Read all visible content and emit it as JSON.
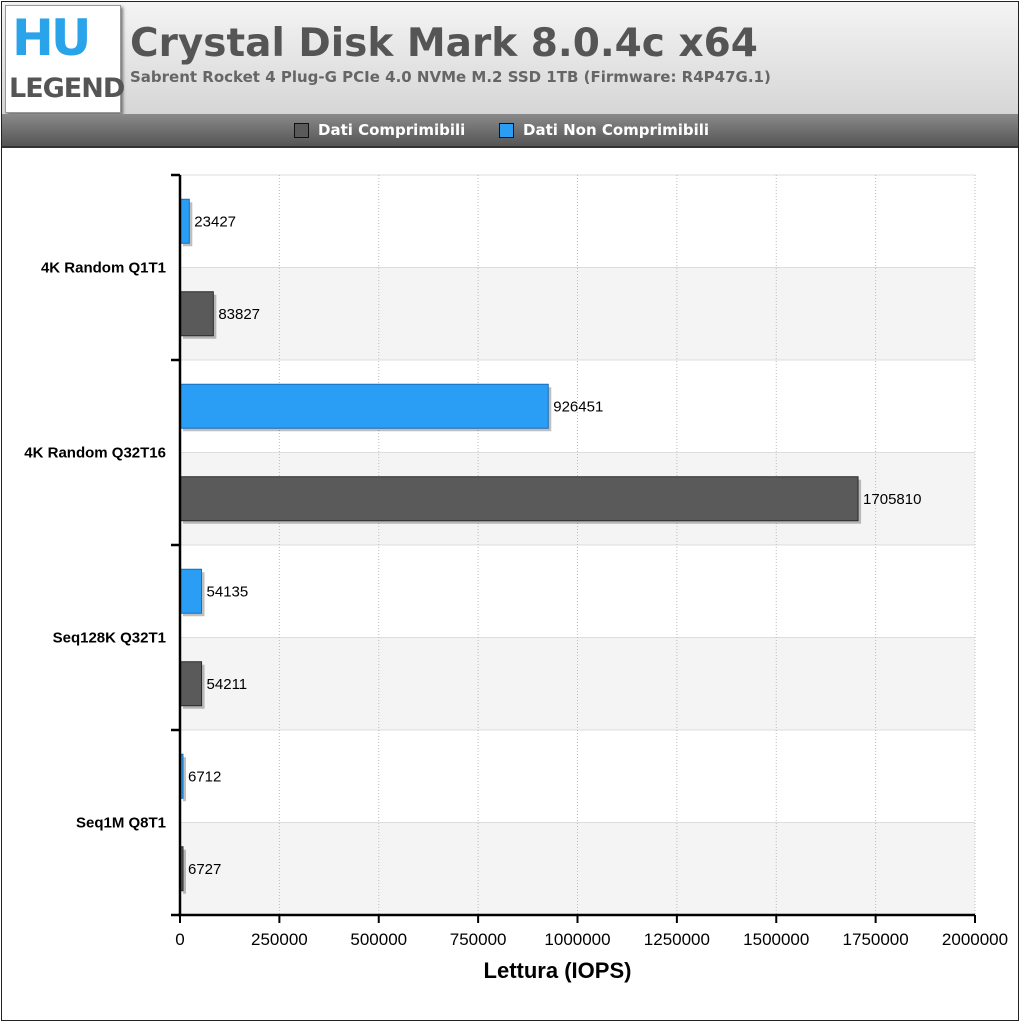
{
  "header": {
    "logo_top": "HU",
    "logo_bottom": "LEGEND",
    "title": "Crystal Disk Mark 8.0.4c x64",
    "subtitle": "Sabrent Rocket 4 Plug-G PCIe 4.0 NVMe M.2 SSD 1TB (Firmware: R4P47G.1)"
  },
  "chart_data": {
    "type": "bar",
    "orientation": "horizontal",
    "title": "Crystal Disk Mark 8.0.4c x64",
    "subtitle": "Sabrent Rocket 4 Plug-G PCIe 4.0 NVMe M.2 SSD 1TB (Firmware: R4P47G.1)",
    "xlabel": "Lettura (IOPS)",
    "ylabel": "",
    "xlim": [
      0,
      2000000
    ],
    "xticks": [
      0,
      250000,
      500000,
      750000,
      1000000,
      1250000,
      1500000,
      1750000,
      2000000
    ],
    "xtick_labels": [
      "0",
      "250000",
      "500000",
      "750000",
      "1000000",
      "1250000",
      "1500000",
      "1750000",
      "2000000"
    ],
    "categories": [
      "4K Random Q1T1",
      "4K Random Q32T16",
      "Seq128K Q32T1",
      "Seq1M Q8T1"
    ],
    "series": [
      {
        "name": "Dati Non Comprimibili",
        "color": "#2a9df4",
        "values": [
          23427,
          926451,
          54135,
          6712
        ]
      },
      {
        "name": "Dati Comprimibili",
        "color": "#5a5a5a",
        "values": [
          83827,
          1705810,
          54211,
          6727
        ]
      }
    ],
    "legend": {
      "placement": "top",
      "entries": [
        {
          "name": "Dati Comprimibili",
          "color": "#5a5a5a"
        },
        {
          "name": "Dati Non Comprimibili",
          "color": "#2a9df4"
        }
      ]
    },
    "grid": true
  }
}
